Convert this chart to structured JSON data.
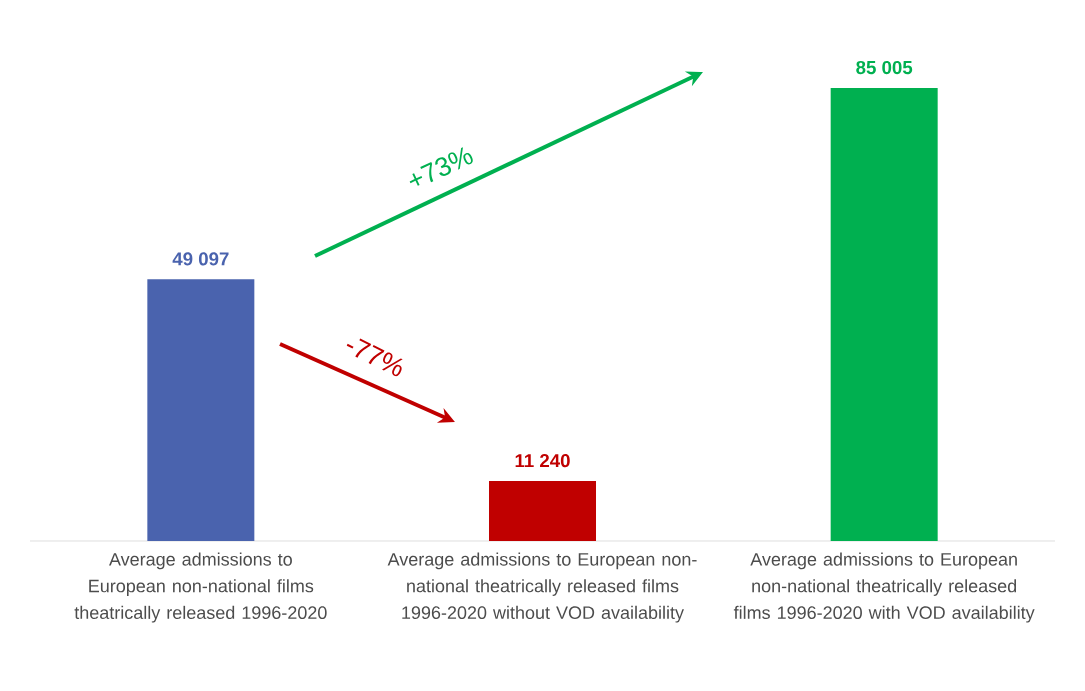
{
  "chart_data": {
    "type": "bar",
    "categories": [
      "Average admissions to European non-national films theatrically released 1996-2020",
      "Average admissions to European non-national theatrically released films 1996-2020 without VOD availability",
      "Average admissions to European non-national theatrically released films 1996-2020 with VOD availability"
    ],
    "values": [
      49097,
      11240,
      85005
    ],
    "colors": [
      "#4a63ae",
      "#c00000",
      "#00b050"
    ],
    "value_labels": [
      "49 097",
      "11 240",
      "85 005"
    ],
    "annotations": [
      "+73%",
      "-77%"
    ]
  }
}
